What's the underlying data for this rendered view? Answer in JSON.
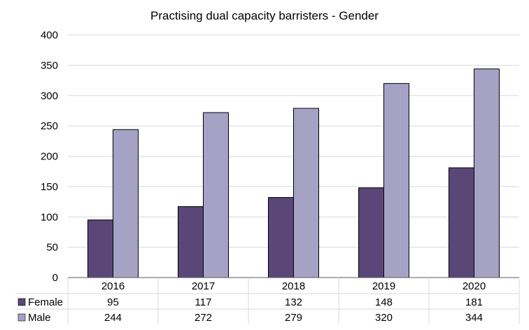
{
  "chart_data": {
    "type": "bar",
    "title": "Practising dual capacity barristers - Gender",
    "categories": [
      "2016",
      "2017",
      "2018",
      "2019",
      "2020"
    ],
    "series": [
      {
        "name": "Female",
        "color": "#5b4678",
        "values": [
          95,
          117,
          132,
          148,
          181
        ]
      },
      {
        "name": "Male",
        "color": "#a6a2c6",
        "values": [
          244,
          272,
          279,
          320,
          344
        ]
      }
    ],
    "ylim": [
      0,
      400
    ],
    "yticks": [
      0,
      50,
      100,
      150,
      200,
      250,
      300,
      350,
      400
    ],
    "grid": true,
    "legend": "data-table-below",
    "xlabel": "",
    "ylabel": ""
  }
}
